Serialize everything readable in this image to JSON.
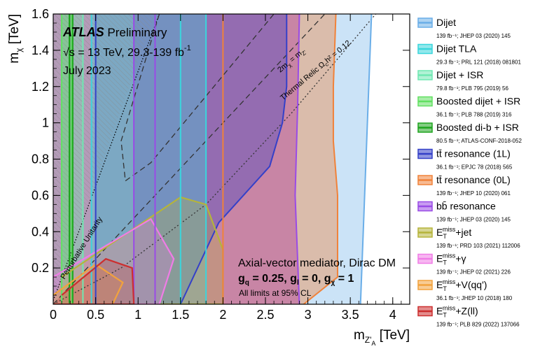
{
  "chart_data": {
    "type": "area",
    "xlabel_main": "m",
    "xlabel_sub": "Z'",
    "xlabel_subsub": "A",
    "xlabel_unit": "[TeV]",
    "ylabel_main": "m",
    "ylabel_sub": "χ",
    "ylabel_unit": "[TeV]",
    "xlim": [
      0,
      4.2
    ],
    "ylim": [
      0,
      1.6
    ],
    "xticks": [
      "0",
      "0.5",
      "1",
      "1.5",
      "2",
      "2.5",
      "3",
      "3.5",
      "4"
    ],
    "xtick_values": [
      0,
      0.5,
      1,
      1.5,
      2,
      2.5,
      3,
      3.5,
      4
    ],
    "yticks": [
      "0.2",
      "0.4",
      "0.6",
      "0.8",
      "1",
      "1.2",
      "1.4",
      "1.6"
    ],
    "ytick_values": [
      0.2,
      0.4,
      0.6,
      0.8,
      1,
      1.2,
      1.4,
      1.6
    ],
    "atlas_label": "ATLAS",
    "atlas_status": "Preliminary",
    "energy_label": "√s = 13 TeV, 29.3-139 fb",
    "energy_sup": "-1",
    "date_label": "July 2023",
    "model_label": "Axial-vector mediator, Dirac DM",
    "couplings_label": "g",
    "couplings": [
      {
        "sym": "g",
        "sub": "q",
        "val": " = 0.25, "
      },
      {
        "sym": "g",
        "sub": "l",
        "val": " = 0, "
      },
      {
        "sym": "g",
        "sub": "χ",
        "val": " = 1"
      }
    ],
    "cl_label": "All limits at 95% CL",
    "diag_label": "2m",
    "diag_label_sub1": "χ",
    "diag_label_mid": " = m",
    "diag_label_sub2": "Z'",
    "relic_label": "Thermal Relic Ω",
    "relic_label_sub": "c",
    "relic_label_end": "h² = 0.12",
    "unitarity_label": "Perturbative Unitarity",
    "series": [
      {
        "name": "Dijet",
        "ref": "139 fb⁻¹; JHEP 03 (2020) 145",
        "color": "#6aaee8",
        "x": [
          0.5,
          0.5,
          3.62,
          3.75
        ],
        "y": [
          1.6,
          0,
          0,
          1.6
        ]
      },
      {
        "name": "Dijet TLA",
        "ref": "29.3 fb⁻¹; PRL 121 (2018) 081801",
        "color": "#3ad6dc",
        "x": [
          0.45,
          0.45,
          1.8,
          1.8
        ],
        "y": [
          1.6,
          0,
          0,
          1.6
        ]
      },
      {
        "name": "Dijet + ISR",
        "ref": "79.8 fb⁻¹; PLB 795 (2019) 56",
        "color": "#6fe8b2",
        "x": [
          0.1,
          0.1,
          0.35,
          0.35
        ],
        "y": [
          1.6,
          0,
          0,
          1.6
        ]
      },
      {
        "name": "Boosted dijet + ISR",
        "ref": "36.1 fb⁻¹; PLB 788 (2019) 316",
        "color": "#62e062",
        "x": [
          0.1,
          0.1,
          0.22,
          0.22
        ],
        "y": [
          1.6,
          0,
          0,
          1.6
        ]
      },
      {
        "name": "Boosted di-b + ISR",
        "ref": "80.5 fb⁻¹; ATLAS-CONF-2018-052",
        "color": "#1ea41e",
        "x": [
          0.19,
          0.19,
          0.23,
          0.23
        ],
        "y": [
          1.6,
          0,
          0,
          1.6
        ]
      },
      {
        "name": "tt̄ resonance (1L)",
        "ref": "36.1 fb⁻¹; EPJC 78 (2018) 565",
        "color": "#3440c8",
        "x": [
          1.5,
          1.95,
          2.55,
          2.7,
          2.75,
          2.75
        ],
        "y": [
          0,
          0.45,
          0.76,
          1.0,
          1.2,
          1.6
        ]
      },
      {
        "name": "tt̄ resonance (0L)",
        "ref": "139 fb⁻¹; JHEP 10 (2020) 061",
        "color": "#f0823a",
        "x": [
          2.95,
          3.35,
          3.35,
          3.3,
          3.3,
          3.33
        ],
        "y": [
          0,
          0.15,
          0.6,
          0.9,
          1.2,
          1.6
        ]
      },
      {
        "name": "bb̄ resonance",
        "ref": "139 fb⁻¹; JHEP 03 (2020) 145",
        "color": "#9a4be6",
        "x": [
          0.95,
          0.95,
          2.9,
          2.85,
          2.88,
          2.9
        ],
        "y": [
          1.6,
          0,
          0,
          0.6,
          1.1,
          1.6
        ]
      },
      {
        "name": "E_T^miss+jet",
        "ref": "139 fb⁻¹; PRD 103 (2021) 112006",
        "color": "#b5b43a",
        "x": [
          0.1,
          1.5,
          1.8,
          2.0,
          2.0,
          0
        ],
        "y": [
          0.15,
          0.59,
          0.55,
          0.3,
          0,
          0
        ]
      },
      {
        "name": "E_T^miss+γ",
        "ref": "139 fb⁻¹; JHEP 02 (2021) 226",
        "color": "#f07ce6",
        "x": [
          0,
          1.15,
          1.42,
          1.25,
          0
        ],
        "y": [
          0.15,
          0.47,
          0.25,
          0,
          0
        ]
      },
      {
        "name": "E_T^miss+V(qq')",
        "ref": "36.1 fb⁻¹; JHEP 10 (2018) 180",
        "color": "#f2a23c",
        "x": [
          0,
          0.5,
          0.82,
          0.7,
          0
        ],
        "y": [
          0.05,
          0.22,
          0.12,
          0,
          0
        ]
      },
      {
        "name": "E_T^miss+Z(ll)",
        "ref": "139 fb⁻¹; PLB 829 (2022) 137066",
        "color": "#cc2f2f",
        "x": [
          0.1,
          0.62,
          0.93,
          0.95,
          0
        ],
        "y": [
          0.05,
          0.25,
          0.2,
          0,
          0
        ]
      }
    ],
    "legend_placement": "right"
  }
}
